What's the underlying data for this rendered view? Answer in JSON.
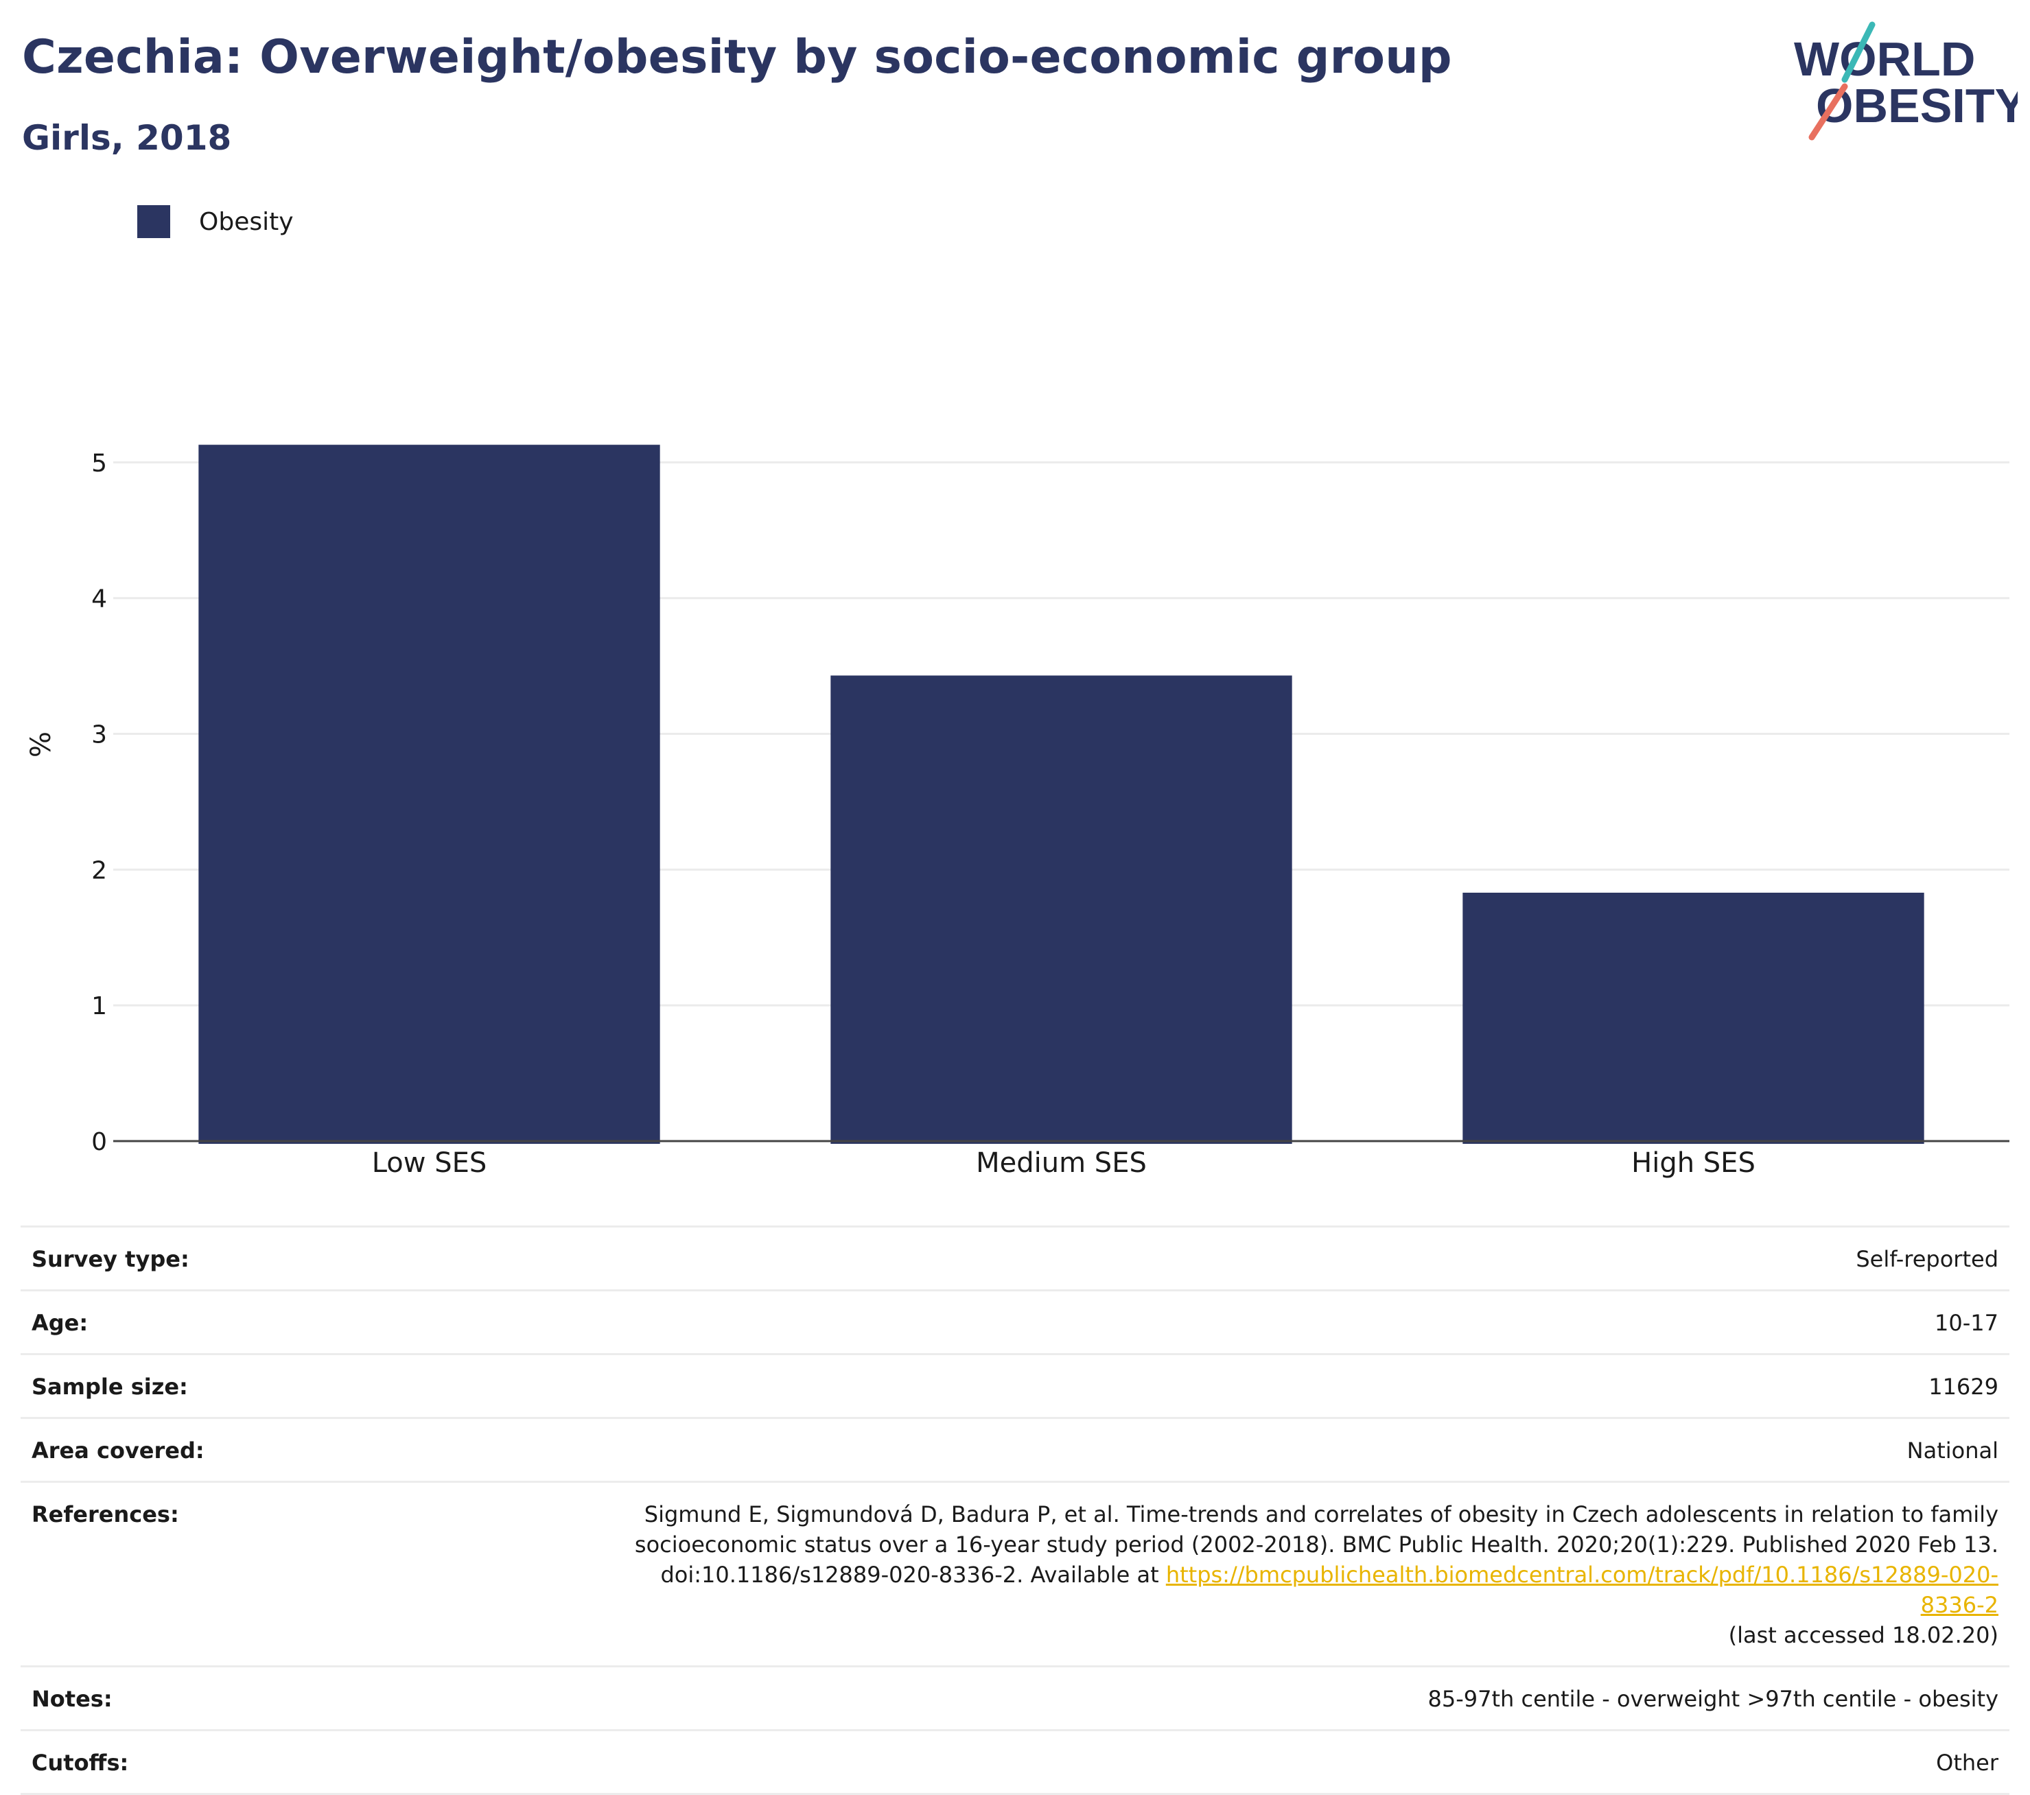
{
  "header": {
    "title": "Czechia: Overweight/obesity by socio-economic group",
    "subtitle": "Girls, 2018"
  },
  "logo": {
    "line1": "WORLD",
    "line2": "OBESITY",
    "text_color": "#2b3561",
    "slash_colors": [
      "#3bb8b6",
      "#e8705f"
    ]
  },
  "legend": {
    "items": [
      {
        "label": "Obesity",
        "color": "#2b3561"
      }
    ]
  },
  "chart_data": {
    "type": "bar",
    "categories": [
      "Low SES",
      "Medium SES",
      "High SES"
    ],
    "series": [
      {
        "name": "Obesity",
        "color": "#2b3561",
        "values": [
          5.13,
          3.43,
          1.83
        ]
      }
    ],
    "ylabel": "%",
    "xlabel": "",
    "ylim": [
      0,
      5.5
    ],
    "yticks": [
      "0",
      "1",
      "2",
      "3",
      "4",
      "5"
    ],
    "grid": true,
    "legend_position": "top-left"
  },
  "meta": {
    "survey_type": {
      "label": "Survey type:",
      "value": "Self-reported"
    },
    "age": {
      "label": "Age:",
      "value": "10-17"
    },
    "sample_size": {
      "label": "Sample size:",
      "value": "11629"
    },
    "area_covered": {
      "label": "Area covered:",
      "value": "National"
    },
    "references": {
      "label": "References:",
      "line1": "Sigmund E, Sigmundová D, Badura P, et al. Time-trends and correlates of obesity in Czech adolescents in relation to family",
      "line2": "socioeconomic status over a 16-year study period (2002-2018). BMC Public Health. 2020;20(1):229. Published 2020 Feb 13.",
      "line3_prefix": "doi:10.1186/s12889-020-8336-2. Available at ",
      "link": "https://bmcpublichealth.biomedcentral.com/track/pdf/10.1186/s12889-020-8336-2",
      "line4": "(last accessed 18.02.20)",
      "link_color": "#e8b400"
    },
    "notes": {
      "label": "Notes:",
      "value": "85-97th centile - overweight >97th centile - obesity"
    },
    "cutoffs": {
      "label": "Cutoffs:",
      "value": "Other"
    }
  }
}
